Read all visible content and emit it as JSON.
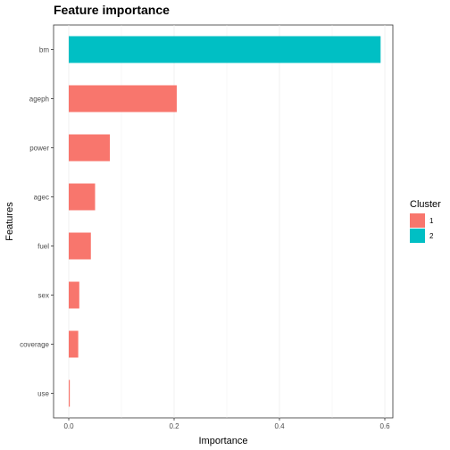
{
  "chart_data": {
    "type": "bar",
    "orientation": "horizontal",
    "title": "Feature importance",
    "xlabel": "Importance",
    "ylabel": "Features",
    "xlim": [
      0,
      0.6
    ],
    "xticks": [
      0.0,
      0.2,
      0.4,
      0.6
    ],
    "xtick_labels": [
      "0.0",
      "0.2",
      "0.4",
      "0.6"
    ],
    "categories": [
      "bm",
      "ageph",
      "power",
      "agec",
      "fuel",
      "sex",
      "coverage",
      "use"
    ],
    "values": [
      0.592,
      0.205,
      0.078,
      0.05,
      0.042,
      0.02,
      0.018,
      0.002
    ],
    "cluster": [
      "2",
      "1",
      "1",
      "1",
      "1",
      "1",
      "1",
      "1"
    ],
    "grid": true,
    "legend": {
      "title": "Cluster",
      "placement": "right",
      "entries": [
        {
          "label": "1",
          "color": "#F8766D"
        },
        {
          "label": "2",
          "color": "#00BFC4"
        }
      ]
    },
    "colors": {
      "1": "#F8766D",
      "2": "#00BFC4"
    }
  }
}
